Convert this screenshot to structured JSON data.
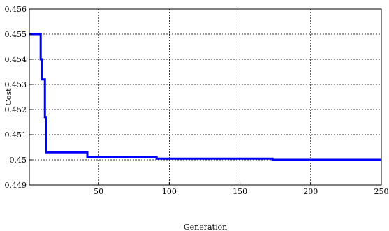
{
  "chart_data": {
    "type": "line",
    "title": "",
    "xlabel": "Generation",
    "ylabel": "Cost",
    "xlim": [
      1,
      250
    ],
    "ylim": [
      0.449,
      0.456
    ],
    "grid": true,
    "x_ticks": [
      50,
      100,
      150,
      200,
      250
    ],
    "x_tick_labels": [
      "50",
      "100",
      "150",
      "200",
      "250"
    ],
    "y_ticks": [
      0.449,
      0.45,
      0.451,
      0.452,
      0.453,
      0.454,
      0.455,
      0.456
    ],
    "y_tick_labels": [
      "0.449",
      "0.45",
      "0.451",
      "0.452",
      "0.453",
      "0.454",
      "0.455",
      "0.456"
    ],
    "series": [
      {
        "color": "#0000ff",
        "x": [
          1,
          8,
          9,
          10,
          11,
          12,
          13,
          14,
          41,
          42,
          90,
          91,
          172,
          173,
          250
        ],
        "y": [
          0.455,
          0.455,
          0.454,
          0.4532,
          0.4532,
          0.4517,
          0.4503,
          0.4503,
          0.4503,
          0.4501,
          0.4501,
          0.45005,
          0.45005,
          0.45,
          0.45
        ]
      }
    ]
  }
}
